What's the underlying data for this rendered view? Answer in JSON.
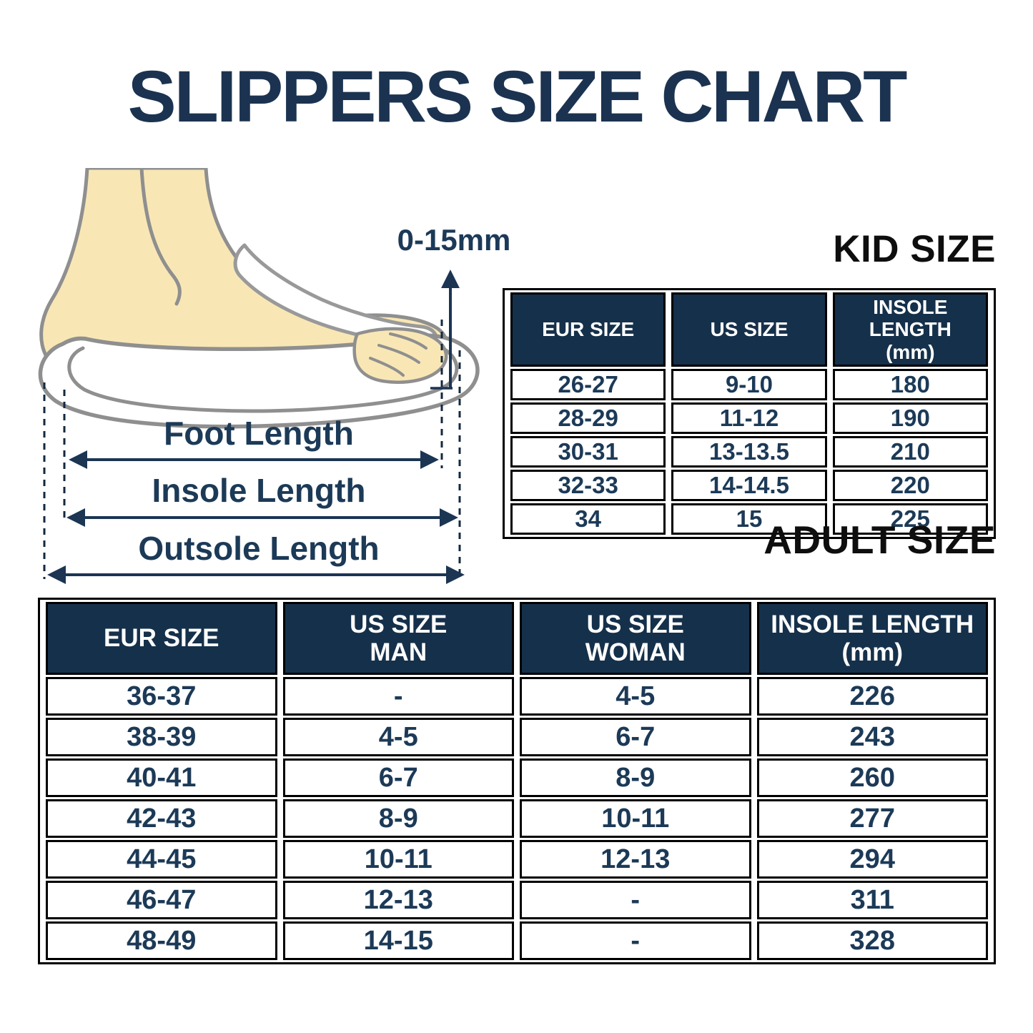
{
  "title": "SLIPPERS SIZE CHART",
  "colors": {
    "navy_text": "#1c3a57",
    "title_navy": "#1b3350",
    "table_header_bg": "#15304a",
    "heading_black": "#0e0e0e",
    "border_black": "#000000",
    "foot_fill": "#f8e7b5",
    "outline_gray": "#8f8f8f"
  },
  "diagram": {
    "toe_allowance_label": "0-15mm",
    "measure_labels": [
      "Foot Length",
      "Insole Length",
      "Outsole Length"
    ]
  },
  "kid_table": {
    "heading": "KID SIZE",
    "columns": [
      [
        "EUR SIZE"
      ],
      [
        "US SIZE"
      ],
      [
        "INSOLE LENGTH",
        "(mm)"
      ]
    ],
    "rows": [
      [
        "26-27",
        "9-10",
        "180"
      ],
      [
        "28-29",
        "11-12",
        "190"
      ],
      [
        "30-31",
        "13-13.5",
        "210"
      ],
      [
        "32-33",
        "14-14.5",
        "220"
      ],
      [
        "34",
        "15",
        "225"
      ]
    ]
  },
  "adult_table": {
    "heading": "ADULT SIZE",
    "columns": [
      [
        "EUR SIZE"
      ],
      [
        "US SIZE",
        "MAN"
      ],
      [
        "US SIZE",
        "WOMAN"
      ],
      [
        "INSOLE LENGTH",
        "(mm)"
      ]
    ],
    "rows": [
      [
        "36-37",
        "-",
        "4-5",
        "226"
      ],
      [
        "38-39",
        "4-5",
        "6-7",
        "243"
      ],
      [
        "40-41",
        "6-7",
        "8-9",
        "260"
      ],
      [
        "42-43",
        "8-9",
        "10-11",
        "277"
      ],
      [
        "44-45",
        "10-11",
        "12-13",
        "294"
      ],
      [
        "46-47",
        "12-13",
        "-",
        "311"
      ],
      [
        "48-49",
        "14-15",
        "-",
        "328"
      ]
    ]
  }
}
